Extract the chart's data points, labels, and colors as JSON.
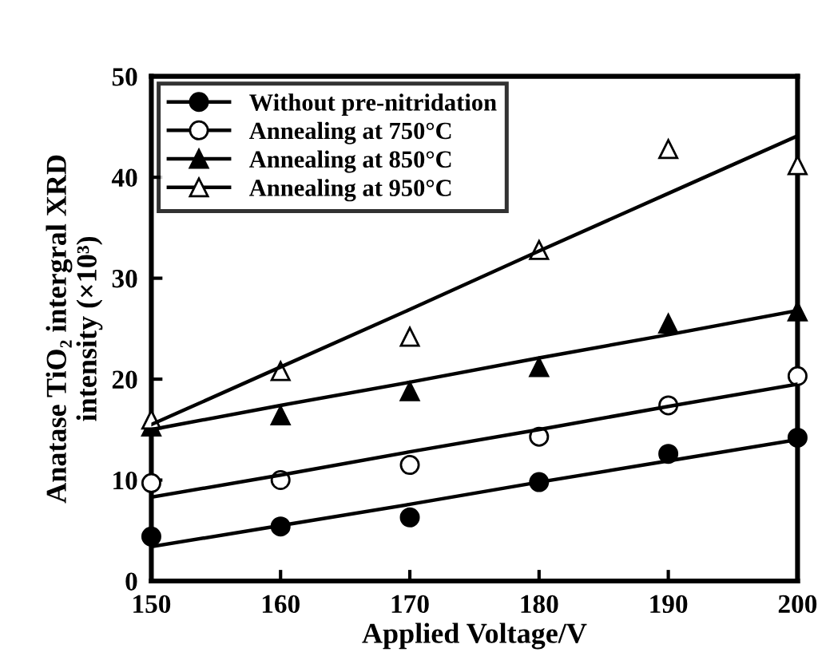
{
  "chart_data": {
    "type": "scatter",
    "xlabel": "Applied Voltage/V",
    "ylabel": "Anatase TiO₂ intergral XRD\nintensity (×10³)",
    "x": [
      150,
      160,
      170,
      180,
      190,
      200
    ],
    "series": [
      {
        "name": "Without pre-nitridation",
        "marker": "circle",
        "color": "#000000",
        "values": [
          4.4,
          5.4,
          6.3,
          9.8,
          12.6,
          14.2
        ]
      },
      {
        "name": "Annealing at 750°C",
        "marker": "circle",
        "color": "#ffffff",
        "values": [
          9.7,
          10.0,
          11.5,
          14.3,
          17.4,
          20.3
        ]
      },
      {
        "name": "Annealing at 850°C",
        "marker": "triangle",
        "color": "#000000",
        "values": [
          15.3,
          16.4,
          18.8,
          21.2,
          25.5,
          26.7
        ]
      },
      {
        "name": "Annealing at 950°C",
        "marker": "triangle",
        "color": "#ffffff",
        "values": [
          16.0,
          20.8,
          24.2,
          32.8,
          42.8,
          41.2
        ]
      },
      {
        "type": "line",
        "color": "#000000",
        "values": [
          3.4,
          5.5,
          7.6,
          9.8,
          11.9,
          14.0
        ]
      },
      {
        "type": "line",
        "color": "#000000",
        "values": [
          8.3,
          10.5,
          12.8,
          15.0,
          17.3,
          19.5
        ]
      },
      {
        "type": "line",
        "color": "#000000",
        "values": [
          15.0,
          17.4,
          19.7,
          22.1,
          24.4,
          26.8
        ]
      },
      {
        "type": "line",
        "color": "#000000",
        "values": [
          15.5,
          21.2,
          26.9,
          32.7,
          38.4,
          44.1
        ]
      }
    ],
    "xlim": [
      150,
      200
    ],
    "xticks": [
      150,
      160,
      170,
      180,
      190,
      200
    ],
    "ylim": [
      0,
      50
    ],
    "yticks": [
      0,
      10,
      20,
      30,
      40,
      50
    ],
    "legend": "top left",
    "line_style": "solid"
  }
}
